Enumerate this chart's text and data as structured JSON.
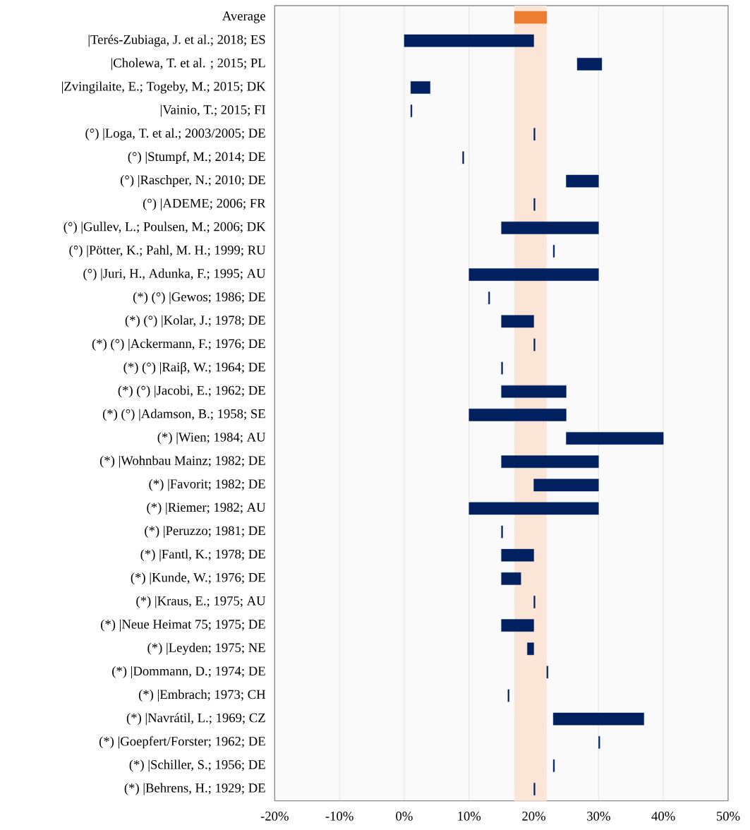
{
  "chart_data": {
    "type": "bar",
    "orientation": "horizontal",
    "categories": [
      "Average",
      "|Terés-Zubiaga, J. et al.; 2018; ES",
      "|Cholewa, T. et al. ; 2015; PL",
      "|Zvingilaite, E.; Togeby, M.; 2015; DK",
      "|Vainio, T.; 2015; FI",
      "(°) |Loga, T. et al.; 2003/2005; DE",
      "(°) |Stumpf, M.; 2014; DE",
      "(°) |Raschper, N.; 2010; DE",
      "(°) |ADEME; 2006; FR",
      "(°) |Gullev, L.; Poulsen, M.; 2006; DK",
      "(°) |Pötter, K.; Pahl, M. H.; 1999; RU",
      "(°) |Juri, H., Adunka, F.; 1995; AU",
      "(*) (°) |Gewos; 1986; DE",
      "(*) (°) |Kolar, J.; 1978; DE",
      "(*) (°) |Ackermann, F.; 1976; DE",
      "(*) (°) |Raiβ, W.; 1964; DE",
      "(*) (°) |Jacobi, E.; 1962; DE",
      "(*) (°) |Adamson, B.; 1958; SE",
      "(*) |Wien; 1984; AU",
      "(*) |Wohnbau Mainz; 1982; DE",
      "(*) |Favorit; 1982; DE",
      "(*) |Riemer; 1982; AU",
      "(*) |Peruzzo; 1981; DE",
      "(*) |Fantl, K.; 1978; DE",
      "(*) |Kunde, W.; 1976; DE",
      "(*) |Kraus, E.; 1975; AU",
      "(*) |Neue Heimat 75; 1975; DE",
      "(*) |Leyden; 1975; NE",
      "(*) |Dommann, D.; 1974; DE",
      "(*) |Embrach; 1973; CH",
      "(*) |Navrátil, L.; 1969; CZ",
      "(*) |Goepfert/Forster; 1962; DE",
      "(*) |Schiller, S.; 1956; DE",
      "(*) |Behrens, H.; 1929; DE"
    ],
    "base": [
      17,
      0,
      26.7,
      1,
      1,
      20,
      9,
      25,
      20,
      15,
      23,
      10,
      13,
      15,
      20,
      15,
      15,
      10,
      25,
      15,
      20,
      10,
      15,
      15,
      15,
      20,
      15,
      19,
      22,
      16,
      23,
      30,
      23,
      20
    ],
    "values": [
      5,
      20,
      3.8,
      3,
      0.2,
      0.2,
      0.2,
      5,
      0.2,
      15,
      0.2,
      20,
      0.2,
      5,
      0.2,
      0.2,
      10,
      15,
      15,
      15,
      10,
      20,
      0.2,
      5,
      3,
      0.2,
      5,
      1,
      0.2,
      0.2,
      14,
      0.2,
      0.2,
      0.2
    ],
    "colors": [
      "#ed7d31",
      "#002060",
      "#002060",
      "#002060",
      "#002060",
      "#002060",
      "#002060",
      "#002060",
      "#002060",
      "#002060",
      "#002060",
      "#002060",
      "#002060",
      "#002060",
      "#002060",
      "#002060",
      "#002060",
      "#002060",
      "#002060",
      "#002060",
      "#002060",
      "#002060",
      "#002060",
      "#002060",
      "#002060",
      "#002060",
      "#002060",
      "#002060",
      "#002060",
      "#002060",
      "#002060",
      "#002060",
      "#002060",
      "#002060"
    ],
    "xlim": [
      -20,
      50
    ],
    "xticks": [
      {
        "value": -20,
        "label": "-20%"
      },
      {
        "value": -10,
        "label": "-10%"
      },
      {
        "value": 0,
        "label": "0%"
      },
      {
        "value": 10,
        "label": "10%"
      },
      {
        "value": 20,
        "label": "20%"
      },
      {
        "value": 30,
        "label": "30%"
      },
      {
        "value": 40,
        "label": "40%"
      },
      {
        "value": 50,
        "label": "50%"
      }
    ],
    "bands": [
      {
        "axis": "x",
        "from": 17,
        "to": 22,
        "color": "#fbe5d6"
      }
    ],
    "grid": "x"
  }
}
